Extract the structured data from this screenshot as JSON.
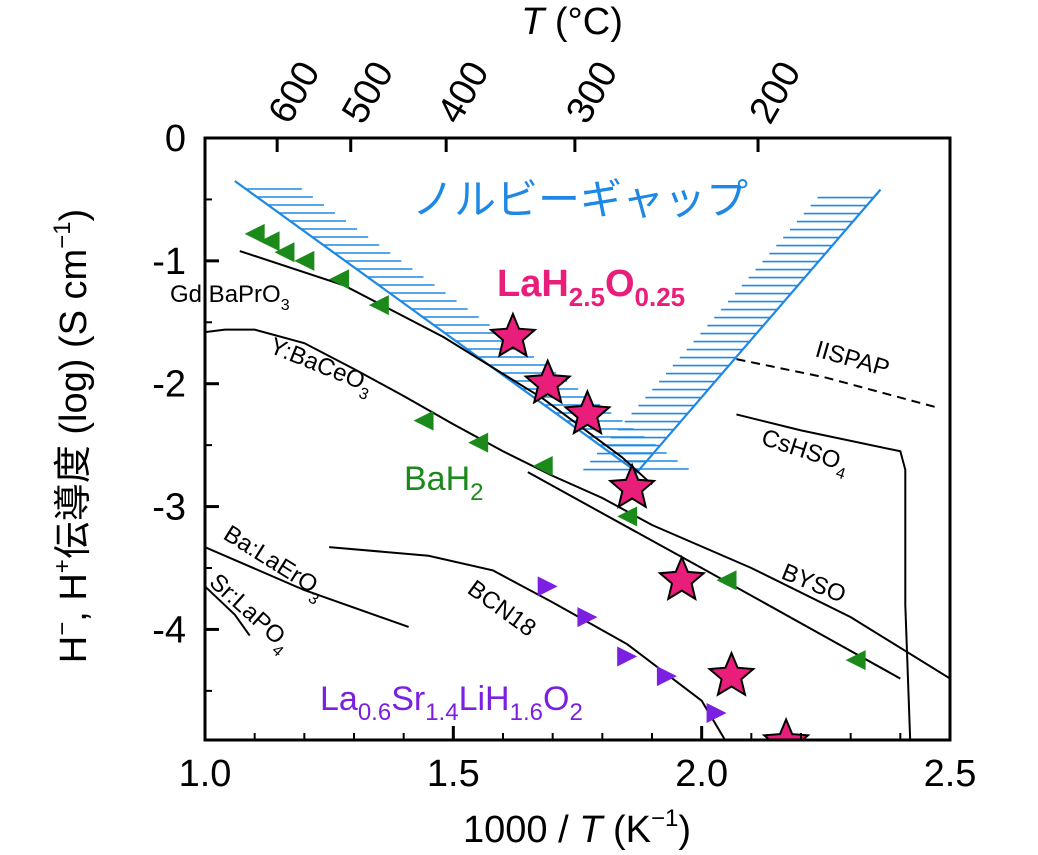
{
  "chart_data": {
    "type": "scatter",
    "xlabel_main": "1000 / ",
    "xlabel_var": "T",
    "xlabel_unit": " (K",
    "xlabel_exp": "−1",
    "xlabel_close": ")",
    "top_label_var": "T",
    "top_label_unit": " (°C)",
    "ylabel_main": "H",
    "ylabel_sup1": "−",
    "ylabel_mid": ", H",
    "ylabel_sup2": "+",
    "ylabel_rest": "伝導度 (log) (S cm",
    "ylabel_exp": "−1",
    "ylabel_close": ")",
    "xlim": [
      1.0,
      2.5
    ],
    "ylim": [
      -4.9,
      0
    ],
    "x_ticks": [
      "1.0",
      "1.5",
      "2.0",
      "2.5"
    ],
    "x_tick_values": [
      1.0,
      1.5,
      2.0,
      2.5
    ],
    "y_ticks": [
      "0",
      "-1",
      "-2",
      "-3",
      "-4"
    ],
    "y_tick_values": [
      0,
      -1,
      -2,
      -3,
      -4
    ],
    "top_ticks": [
      "600",
      "500",
      "400",
      "300",
      "200"
    ],
    "top_tick_celsius": [
      600,
      500,
      400,
      300,
      200
    ],
    "norby_gap": {
      "label": "ノルビーギャップ",
      "color": "#1e88e5",
      "left_line": [
        [
          1.06,
          -0.35
        ],
        [
          1.87,
          -2.72
        ]
      ],
      "right_line": [
        [
          1.87,
          -2.72
        ],
        [
          2.36,
          -0.42
        ]
      ]
    },
    "series": [
      {
        "name": "LaH",
        "name_sub1": "2.5",
        "name_mid": "O",
        "name_sub2": "0.25",
        "marker": "star",
        "color": "#e91e7a",
        "x": [
          1.62,
          1.69,
          1.77,
          1.86,
          1.96,
          2.06,
          2.17
        ],
        "y": [
          -1.62,
          -2.0,
          -2.25,
          -2.85,
          -3.6,
          -4.38,
          -4.92
        ]
      },
      {
        "name": "BaH",
        "name_sub1": "2",
        "marker": "triangle-left",
        "color": "#1b8a1b",
        "x": [
          1.1,
          1.13,
          1.16,
          1.2,
          1.27,
          1.35,
          1.44,
          1.55,
          1.68,
          1.85,
          2.05,
          2.31
        ],
        "y": [
          -0.78,
          -0.84,
          -0.93,
          -1.0,
          -1.15,
          -1.36,
          -2.3,
          -2.48,
          -2.67,
          -3.08,
          -3.6,
          -4.25
        ]
      },
      {
        "name_a": "La",
        "sub_a": "0.6",
        "name_b": "Sr",
        "sub_b": "1.4",
        "name_c": "LiH",
        "sub_c": "1.6",
        "name_d": "O",
        "sub_d": "2",
        "marker": "triangle-right",
        "color": "#7b1fe0",
        "x": [
          1.69,
          1.77,
          1.85,
          1.93,
          2.03
        ],
        "y": [
          -3.65,
          -3.9,
          -4.22,
          -4.38,
          -4.68
        ]
      }
    ],
    "lines": [
      {
        "label": "Gd:BaPrO",
        "label_sub": "3",
        "dash": false,
        "points": [
          [
            1.07,
            -0.92
          ],
          [
            1.28,
            -1.2
          ],
          [
            1.48,
            -1.62
          ],
          [
            1.68,
            -2.12
          ],
          [
            1.84,
            -2.6
          ],
          [
            1.9,
            -2.82
          ]
        ]
      },
      {
        "label": "Y:BaCeO",
        "label_sub": "3",
        "dash": false,
        "points": [
          [
            1.0,
            -1.58
          ],
          [
            1.04,
            -1.56
          ],
          [
            1.1,
            -1.56
          ],
          [
            1.2,
            -1.67
          ],
          [
            1.3,
            -1.88
          ],
          [
            1.4,
            -2.1
          ],
          [
            1.5,
            -2.33
          ],
          [
            1.6,
            -2.55
          ],
          [
            1.7,
            -2.75
          ],
          [
            1.8,
            -2.93
          ],
          [
            1.9,
            -3.15
          ],
          [
            2.1,
            -3.5
          ],
          [
            2.3,
            -3.9
          ],
          [
            2.5,
            -4.4
          ]
        ]
      },
      {
        "label": "BYSO",
        "dash": false,
        "points": [
          [
            1.65,
            -2.72
          ],
          [
            2.0,
            -3.5
          ],
          [
            2.4,
            -4.4
          ]
        ]
      },
      {
        "label": "CsHSO",
        "label_sub": "4",
        "dash": false,
        "points": [
          [
            2.07,
            -2.25
          ],
          [
            2.2,
            -2.38
          ],
          [
            2.4,
            -2.55
          ],
          [
            2.41,
            -2.7
          ],
          [
            2.41,
            -3.8
          ],
          [
            2.42,
            -4.92
          ]
        ]
      },
      {
        "label": "IISPAP",
        "dash": true,
        "points": [
          [
            2.07,
            -1.8
          ],
          [
            2.25,
            -1.95
          ],
          [
            2.48,
            -2.2
          ]
        ]
      },
      {
        "label": "BCN18",
        "dash": false,
        "points": [
          [
            1.25,
            -3.33
          ],
          [
            1.45,
            -3.4
          ],
          [
            1.58,
            -3.52
          ],
          [
            1.7,
            -3.78
          ],
          [
            1.85,
            -4.12
          ],
          [
            2.0,
            -4.58
          ],
          [
            2.05,
            -4.92
          ]
        ]
      },
      {
        "label": "Ba:LaErO",
        "label_sub": "3",
        "dash": false,
        "points": [
          [
            1.0,
            -3.33
          ],
          [
            1.2,
            -3.68
          ],
          [
            1.41,
            -3.98
          ]
        ]
      },
      {
        "label": "Sr:LaPO",
        "label_sub": "4",
        "dash": false,
        "points": [
          [
            1.0,
            -3.65
          ],
          [
            1.06,
            -3.88
          ],
          [
            1.09,
            -4.05
          ]
        ]
      }
    ]
  }
}
